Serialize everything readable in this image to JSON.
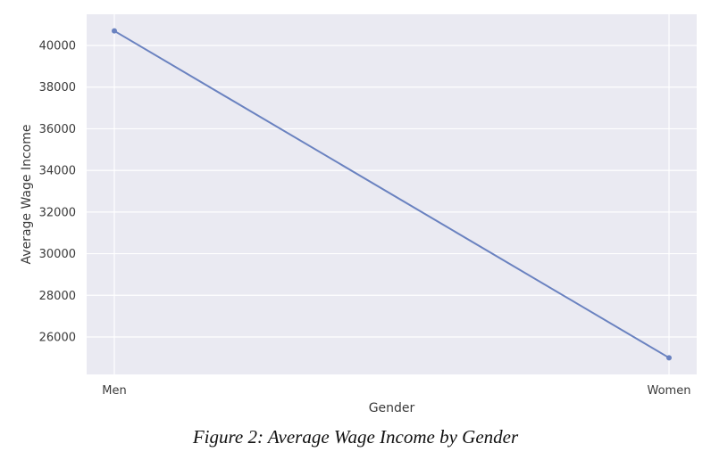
{
  "chart_data": {
    "type": "line",
    "categories": [
      "Men",
      "Women"
    ],
    "series": [
      {
        "values": [
          40700,
          25000
        ]
      }
    ],
    "xlabel": "Gender",
    "ylabel": "Average Wage Income",
    "ylim": [
      24200,
      41500
    ],
    "yticks": [
      26000,
      28000,
      30000,
      32000,
      34000,
      36000,
      38000,
      40000
    ],
    "grid": true,
    "colors": {
      "line": "#6a82c0",
      "background": "#eaeaf2",
      "grid": "#ffffff"
    }
  },
  "caption": "Figure 2: Average Wage Income by Gender"
}
